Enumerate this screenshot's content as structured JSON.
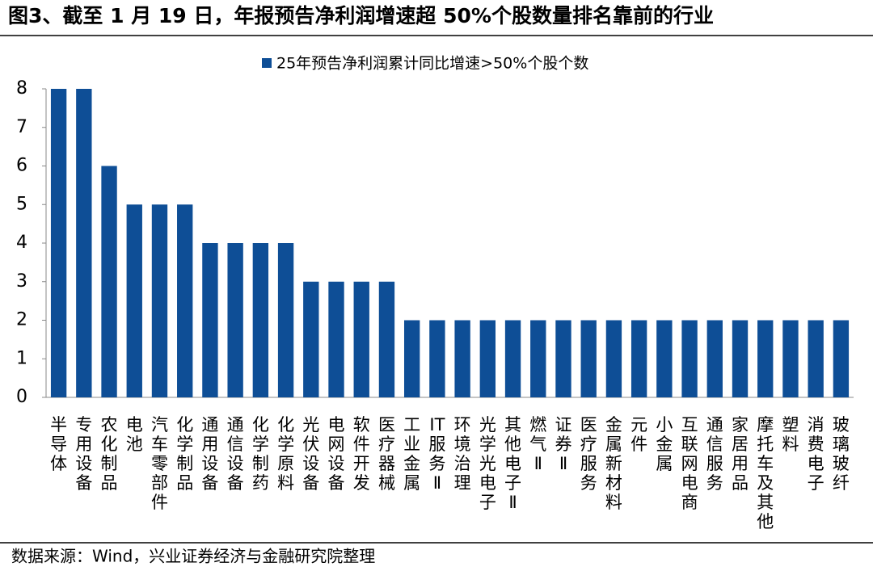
{
  "chart_data": {
    "type": "bar",
    "title": "图3、截至 1 月 19 日，年报预告净利润增速超  50%个股数量排名靠前的行业",
    "categories": [
      "半导体",
      "专用设备",
      "农化制品",
      "电池",
      "汽车零部件",
      "化学制品",
      "通用设备",
      "通信设备",
      "化学制药",
      "化学原料",
      "光伏设备",
      "电网设备",
      "软件开发",
      "医疗器械",
      "工业金属",
      "IT服务Ⅱ",
      "环境治理",
      "光学光电子",
      "其他电子Ⅱ",
      "燃气Ⅱ",
      "证券Ⅱ",
      "医疗服务",
      "金属新材料",
      "元件",
      "小金属",
      "互联网电商",
      "通信服务",
      "家居用品",
      "摩托车及其他",
      "塑料",
      "消费电子",
      "玻璃玻纤"
    ],
    "series": [
      {
        "name": "25年预告净利润累计同比增速>50%个股个数",
        "color": "#0e4e96",
        "values": [
          8,
          8,
          6,
          5,
          5,
          5,
          4,
          4,
          4,
          4,
          3,
          3,
          3,
          3,
          2,
          2,
          2,
          2,
          2,
          2,
          2,
          2,
          2,
          2,
          2,
          2,
          2,
          2,
          2,
          2,
          2,
          2
        ]
      }
    ],
    "ylim": [
      0,
      8
    ],
    "yticks": [
      0,
      1,
      2,
      3,
      4,
      5,
      6,
      7,
      8
    ],
    "legend": "top",
    "source": "数据来源：Wind，兴业证券经济与金融研究院整理"
  }
}
